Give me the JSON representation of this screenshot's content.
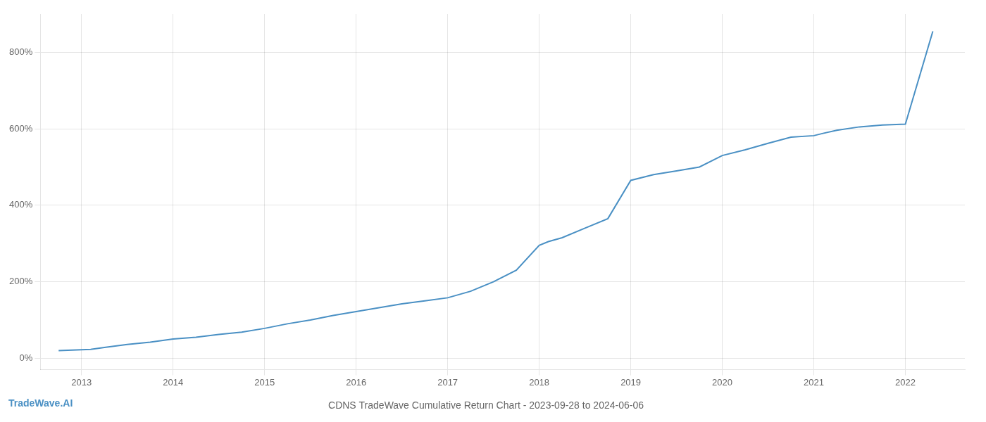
{
  "chart_data": {
    "type": "line",
    "title": "CDNS TradeWave Cumulative Return Chart - 2023-09-28 to 2024-06-06",
    "annotations": [
      "TradeWave.AI"
    ],
    "x": [
      2012.75,
      2013.0,
      2013.1,
      2013.25,
      2013.5,
      2013.75,
      2014.0,
      2014.25,
      2014.5,
      2014.75,
      2015.0,
      2015.25,
      2015.5,
      2015.75,
      2016.0,
      2016.25,
      2016.5,
      2016.75,
      2017.0,
      2017.25,
      2017.5,
      2017.75,
      2018.0,
      2018.1,
      2018.25,
      2018.5,
      2018.75,
      2019.0,
      2019.25,
      2019.5,
      2019.75,
      2020.0,
      2020.25,
      2020.5,
      2020.75,
      2021.0,
      2021.1,
      2021.25,
      2021.5,
      2021.75,
      2022.0,
      2022.3
    ],
    "values": [
      20,
      22,
      23,
      28,
      36,
      42,
      50,
      55,
      62,
      68,
      78,
      90,
      100,
      112,
      122,
      132,
      142,
      150,
      158,
      175,
      200,
      230,
      295,
      305,
      315,
      340,
      365,
      465,
      480,
      490,
      500,
      530,
      545,
      562,
      578,
      582,
      588,
      596,
      605,
      610,
      612,
      855
    ],
    "color": "#4a90c4",
    "xlim": [
      2012.55,
      2022.65
    ],
    "xticks": [
      2013,
      2014,
      2015,
      2016,
      2017,
      2018,
      2019,
      2020,
      2021,
      2022
    ],
    "ylim": [
      -30,
      900
    ],
    "yticks": [
      {
        "value": 0,
        "label": "0%"
      },
      {
        "value": 200,
        "label": "200%"
      },
      {
        "value": 400,
        "label": "400%"
      },
      {
        "value": 600,
        "label": "600%"
      },
      {
        "value": 800,
        "label": "800%"
      }
    ],
    "grid": true
  }
}
